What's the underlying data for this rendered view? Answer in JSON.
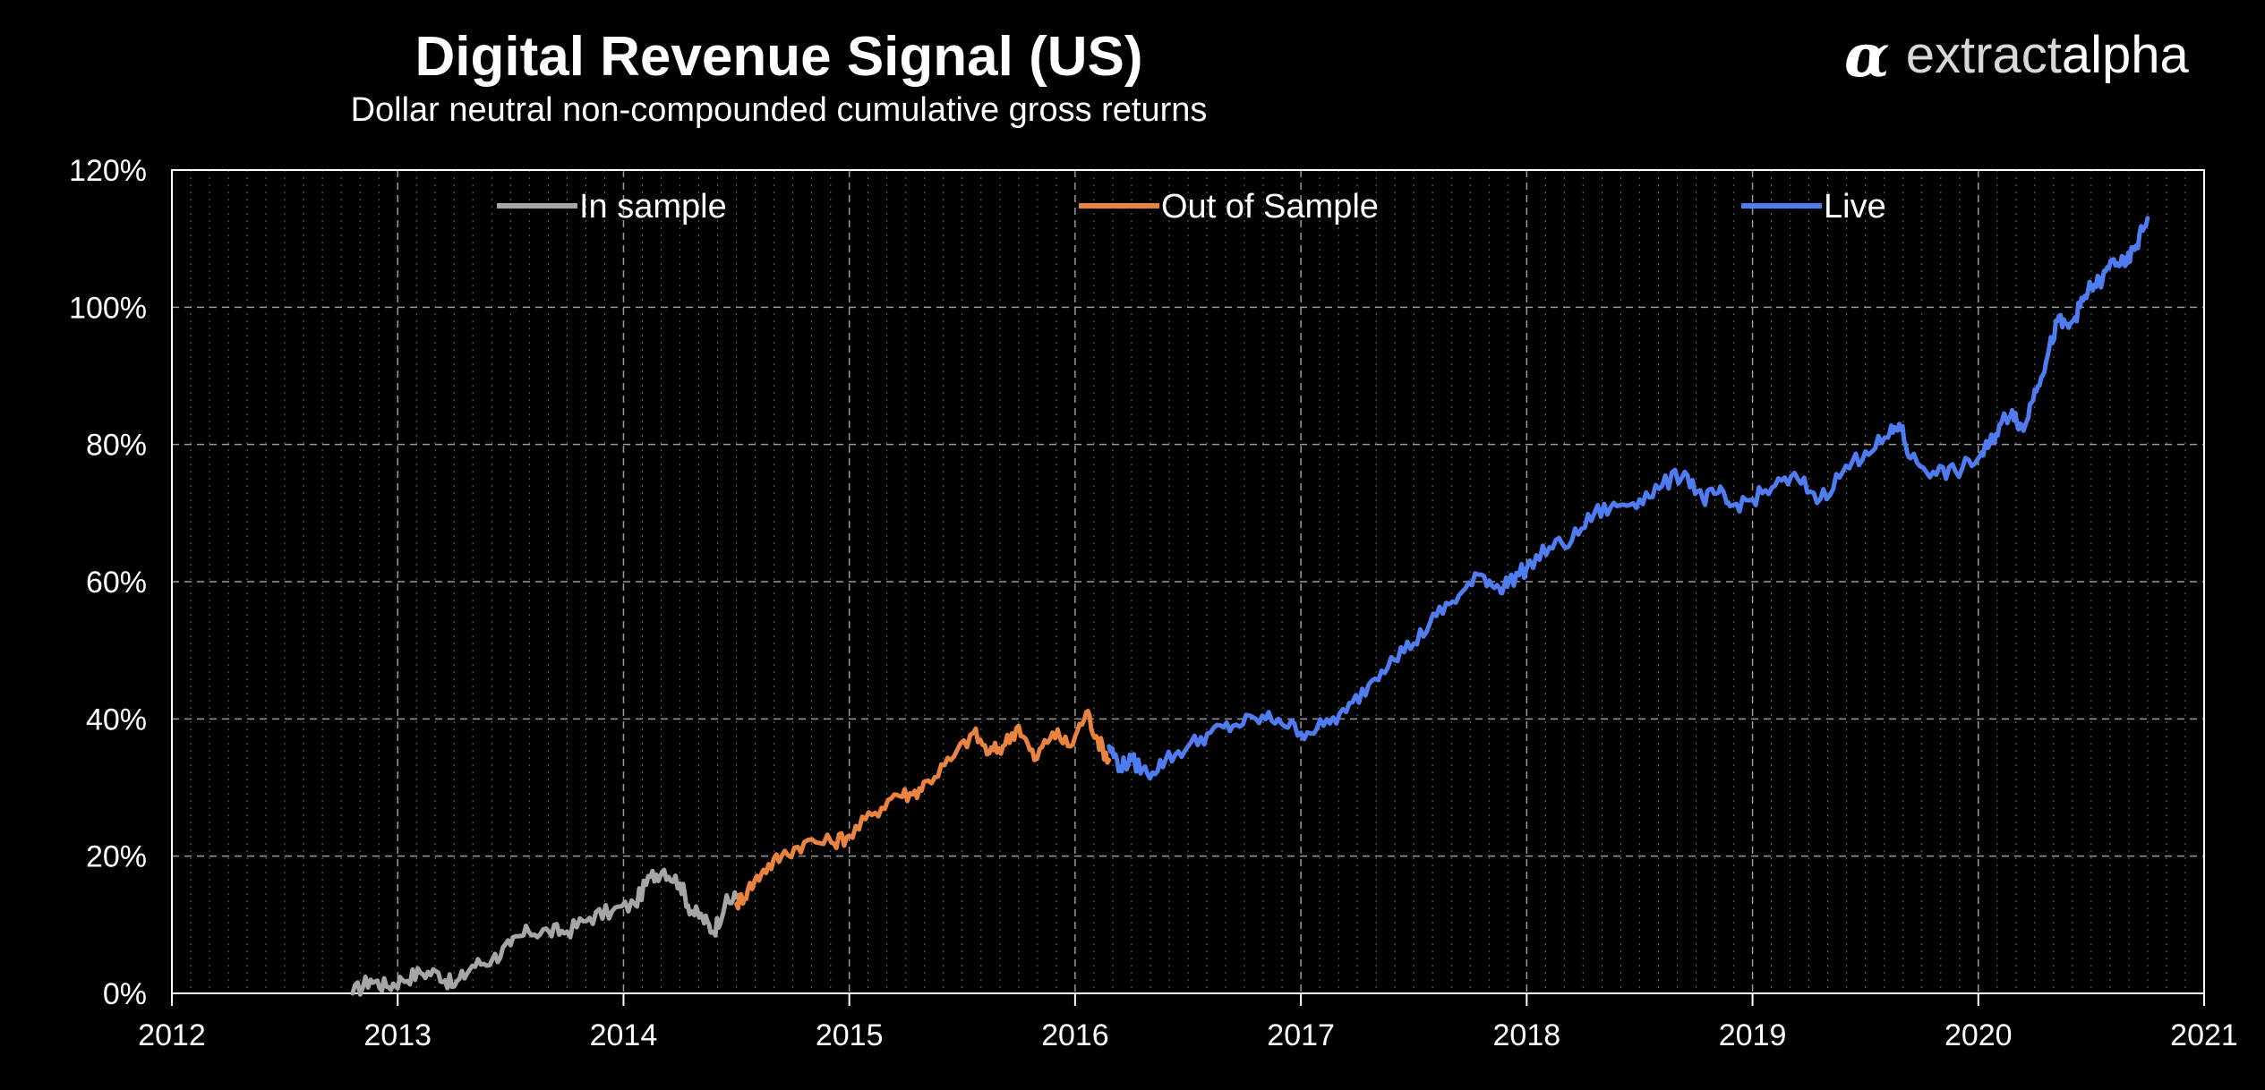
{
  "title": "Digital Revenue Signal (US)",
  "subtitle": "Dollar neutral non-compounded cumulative gross returns",
  "brand": {
    "mark": "α",
    "name_light": "extract",
    "name_bold": "alpha"
  },
  "chart_data": {
    "type": "line",
    "title": "Digital Revenue Signal (US)",
    "subtitle": "Dollar neutral non-compounded cumulative gross returns",
    "xlabel": "",
    "ylabel": "",
    "xlim": [
      2012,
      2021
    ],
    "ylim": [
      0,
      120
    ],
    "x_ticks": [
      "2012",
      "2013",
      "2014",
      "2015",
      "2016",
      "2017",
      "2018",
      "2019",
      "2020",
      "2021"
    ],
    "y_ticks": [
      "0%",
      "20%",
      "40%",
      "60%",
      "80%",
      "100%",
      "120%"
    ],
    "grid": true,
    "legend_position": "top",
    "series": [
      {
        "name": "In sample",
        "color": "#a6a6a6",
        "x": [
          2012.8,
          2012.88,
          2012.95,
          2013.02,
          2013.1,
          2013.18,
          2013.25,
          2013.33,
          2013.42,
          2013.5,
          2013.58,
          2013.67,
          2013.75,
          2013.85,
          2013.95,
          2014.05,
          2014.12,
          2014.18,
          2014.25,
          2014.3,
          2014.35,
          2014.4,
          2014.45,
          2014.5
        ],
        "y": [
          0,
          2,
          1,
          2,
          3,
          3,
          1,
          4,
          5,
          7,
          9,
          9,
          9,
          11,
          12,
          13,
          17,
          18,
          16,
          12,
          11,
          9,
          13,
          14
        ]
      },
      {
        "name": "Out of Sample",
        "color": "#e9833f",
        "x": [
          2014.5,
          2014.55,
          2014.62,
          2014.7,
          2014.8,
          2014.92,
          2015.0,
          2015.1,
          2015.2,
          2015.28,
          2015.35,
          2015.45,
          2015.55,
          2015.62,
          2015.68,
          2015.75,
          2015.82,
          2015.9,
          2015.98,
          2016.05,
          2016.1,
          2016.15
        ],
        "y": [
          13,
          15,
          18,
          20,
          22,
          22,
          23,
          26,
          29,
          29,
          31,
          34,
          38,
          35,
          36,
          39,
          34,
          38,
          36,
          41,
          37,
          34
        ]
      },
      {
        "name": "Live",
        "color": "#4f7cf0",
        "x": [
          2016.15,
          2016.2,
          2016.25,
          2016.32,
          2016.4,
          2016.5,
          2016.6,
          2016.7,
          2016.8,
          2016.9,
          2017.0,
          2017.1,
          2017.2,
          2017.3,
          2017.4,
          2017.5,
          2017.6,
          2017.7,
          2017.8,
          2017.88,
          2017.92,
          2018.0,
          2018.1,
          2018.2,
          2018.3,
          2018.4,
          2018.5,
          2018.6,
          2018.7,
          2018.78,
          2018.85,
          2018.9,
          2019.0,
          2019.1,
          2019.2,
          2019.3,
          2019.4,
          2019.5,
          2019.6,
          2019.65,
          2019.7,
          2019.8,
          2019.9,
          2020.0,
          2020.05,
          2020.1,
          2020.15,
          2020.2,
          2020.25,
          2020.3,
          2020.35,
          2020.4,
          2020.45,
          2020.5,
          2020.55,
          2020.6,
          2020.65,
          2020.7,
          2020.75
        ],
        "y": [
          36,
          33,
          34,
          32,
          34,
          36,
          38,
          39,
          40,
          40,
          38,
          39,
          41,
          45,
          49,
          51,
          55,
          58,
          61,
          59,
          60,
          62,
          65,
          66,
          70,
          71,
          72,
          74,
          76,
          72,
          73,
          71,
          72,
          74,
          75,
          72,
          76,
          79,
          81,
          83,
          78,
          76,
          76,
          78,
          80,
          83,
          85,
          82,
          88,
          92,
          98,
          97,
          100,
          103,
          104,
          107,
          106,
          109,
          113
        ]
      }
    ]
  }
}
